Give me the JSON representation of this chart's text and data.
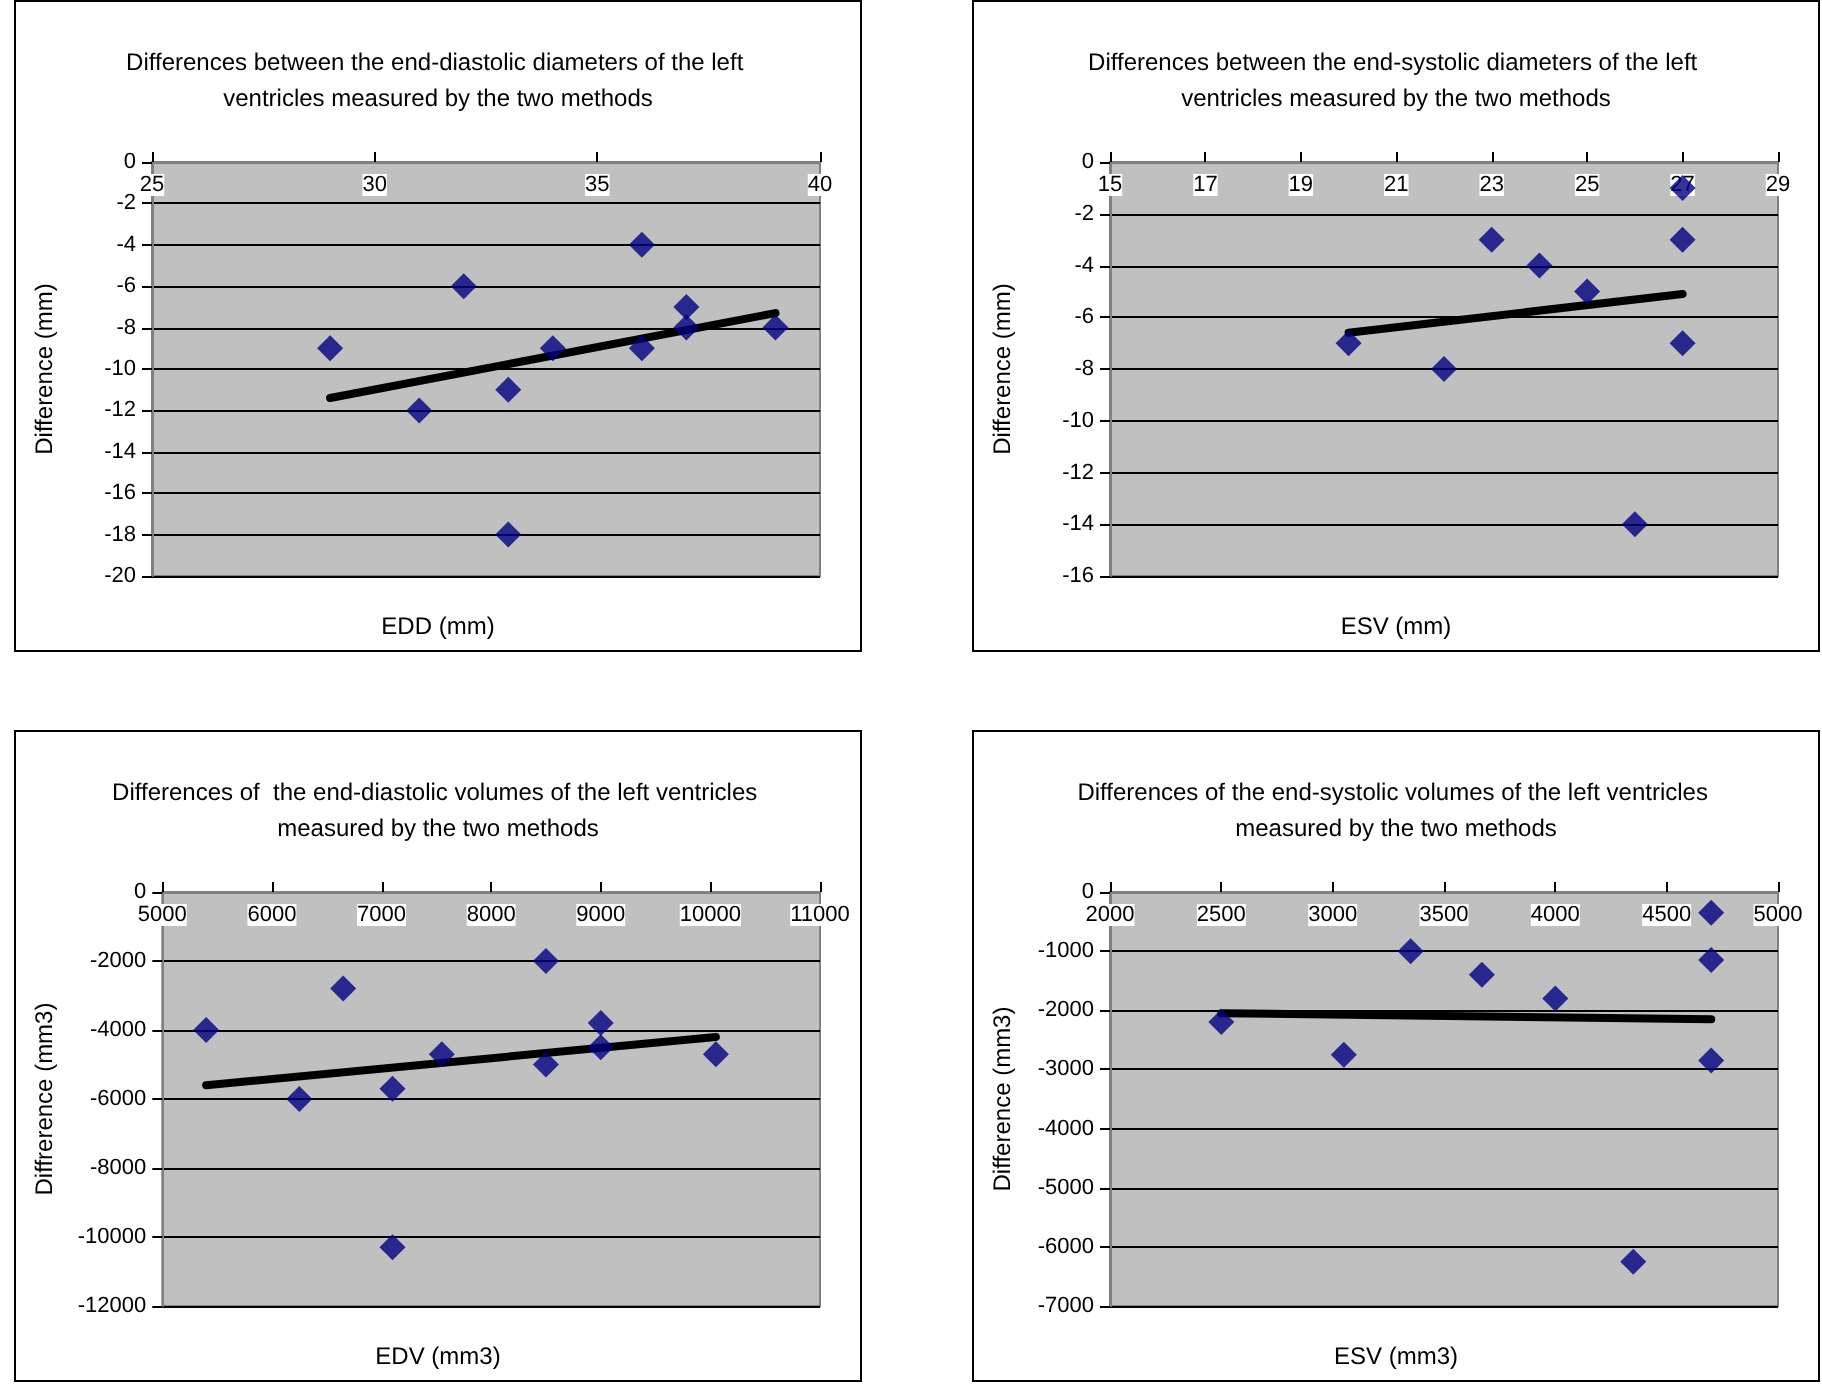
{
  "chart_data": [
    {
      "type": "scatter",
      "title": "Differences between the end-diastolic diameters of the left ventricles measured by the two methods",
      "xlabel": "EDD (mm)",
      "ylabel": "Difference (mm)",
      "xlim": [
        25,
        40
      ],
      "xticks": [
        25,
        30,
        35,
        40
      ],
      "ylim": [
        -20,
        0
      ],
      "yticks": [
        -20,
        -18,
        -16,
        -14,
        -12,
        -10,
        -8,
        -6,
        -4,
        -2,
        0
      ],
      "grid": "y",
      "marker": "diamond",
      "series": [
        {
          "color": "#000080",
          "x": [
            29,
            31,
            32,
            33,
            33,
            34,
            36,
            36,
            37,
            37,
            39
          ],
          "values": [
            -9,
            -12,
            -6,
            -11,
            -18,
            -9,
            -4,
            -9,
            -7,
            -8,
            -8
          ]
        },
        {
          "type": "line",
          "color": "#000000",
          "marker": "none",
          "x": [
            29,
            39
          ],
          "values": [
            -11.4,
            -7.3
          ]
        }
      ]
    },
    {
      "type": "scatter",
      "title": "Differences between the end-systolic diameters of the left ventricles measured by the two methods",
      "xlabel": "ESV (mm)",
      "ylabel": "Difference (mm)",
      "xlim": [
        15,
        29
      ],
      "xticks": [
        15,
        17,
        19,
        21,
        23,
        25,
        27,
        29
      ],
      "ylim": [
        -16,
        0
      ],
      "yticks": [
        -16,
        -14,
        -12,
        -10,
        -8,
        -6,
        -4,
        -2,
        0
      ],
      "grid": "y",
      "marker": "diamond",
      "series": [
        {
          "color": "#000080",
          "x": [
            20,
            22,
            23,
            24,
            25,
            26,
            27,
            27,
            27
          ],
          "values": [
            -7,
            -8,
            -3,
            -4,
            -5,
            -14,
            -1,
            -3,
            -7
          ]
        },
        {
          "type": "line",
          "color": "#000000",
          "marker": "none",
          "x": [
            20,
            27
          ],
          "values": [
            -6.6,
            -5.1
          ]
        }
      ]
    },
    {
      "type": "scatter",
      "title": "Differences of  the end-diastolic volumes of the left ventricles measured by the two methods",
      "xlabel": "EDV (mm3)",
      "ylabel": "Diffrerence (mm3)",
      "xlim": [
        5000,
        11000
      ],
      "xticks": [
        5000,
        6000,
        7000,
        8000,
        9000,
        10000,
        11000
      ],
      "ylim": [
        -12000,
        0
      ],
      "yticks": [
        -12000,
        -10000,
        -8000,
        -6000,
        -4000,
        -2000,
        0
      ],
      "grid": "y",
      "marker": "diamond",
      "series": [
        {
          "color": "#000080",
          "x": [
            5400,
            6250,
            6650,
            7100,
            7100,
            7550,
            8500,
            8500,
            9000,
            9000,
            10050
          ],
          "values": [
            -4000,
            -6000,
            -2800,
            -5700,
            -10300,
            -4700,
            -2000,
            -5000,
            -3800,
            -4500,
            -4700
          ]
        },
        {
          "type": "line",
          "color": "#000000",
          "marker": "none",
          "x": [
            5400,
            10050
          ],
          "values": [
            -5600,
            -4200
          ]
        }
      ]
    },
    {
      "type": "scatter",
      "title": "Differences of the end-systolic volumes of the left ventricles measured by the two methods",
      "xlabel": "ESV (mm3)",
      "ylabel": "Difference (mm3)",
      "xlim": [
        2000,
        5000
      ],
      "xticks": [
        2000,
        2500,
        3000,
        3500,
        4000,
        4500,
        5000
      ],
      "ylim": [
        -7000,
        0
      ],
      "yticks": [
        -7000,
        -6000,
        -5000,
        -4000,
        -3000,
        -2000,
        -1000,
        0
      ],
      "grid": "y",
      "marker": "diamond",
      "series": [
        {
          "color": "#000080",
          "x": [
            2500,
            3050,
            3350,
            3670,
            4000,
            4350,
            4700,
            4700,
            4700
          ],
          "values": [
            -2200,
            -2750,
            -1000,
            -1400,
            -1800,
            -6250,
            -350,
            -1150,
            -2850
          ]
        },
        {
          "type": "line",
          "color": "#000000",
          "marker": "none",
          "x": [
            2500,
            4700
          ],
          "values": [
            -2050,
            -2150
          ]
        }
      ]
    }
  ]
}
